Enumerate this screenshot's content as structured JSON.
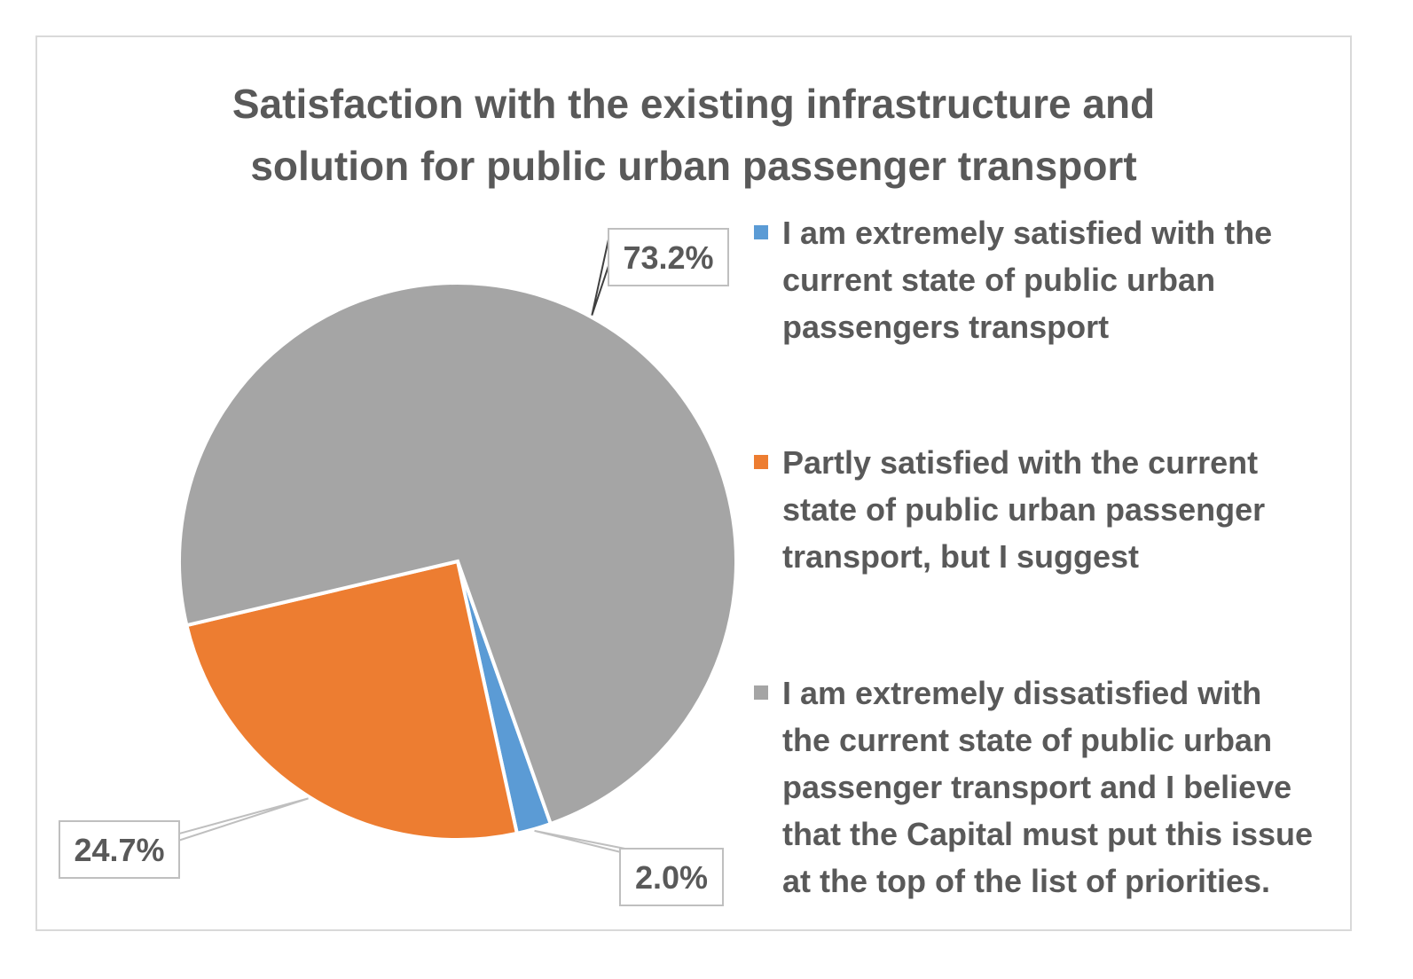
{
  "chart_data": {
    "type": "pie",
    "title_lines": [
      "Satisfaction with the existing infrastructure and",
      "solution for public urban passenger transport"
    ],
    "slices": [
      {
        "label_lines": [
          "I am extremely satisfied with the",
          "current state of public urban",
          "passengers transport"
        ],
        "value": 2.0,
        "data_label": "2.0%",
        "color": "#5b9bd5"
      },
      {
        "label_lines": [
          "Partly satisfied with the current",
          "state of public urban passenger",
          "transport, but I suggest"
        ],
        "value": 24.7,
        "data_label": "24.7%",
        "color": "#ed7d31"
      },
      {
        "label_lines": [
          "I am extremely dissatisfied with",
          "the current state of public urban",
          "passenger transport and I believe",
          "that the Capital must put this issue",
          "at the top of the list of priorities."
        ],
        "value": 73.2,
        "data_label": "73.2%",
        "color": "#a5a5a5"
      }
    ],
    "legend_position": "right"
  }
}
